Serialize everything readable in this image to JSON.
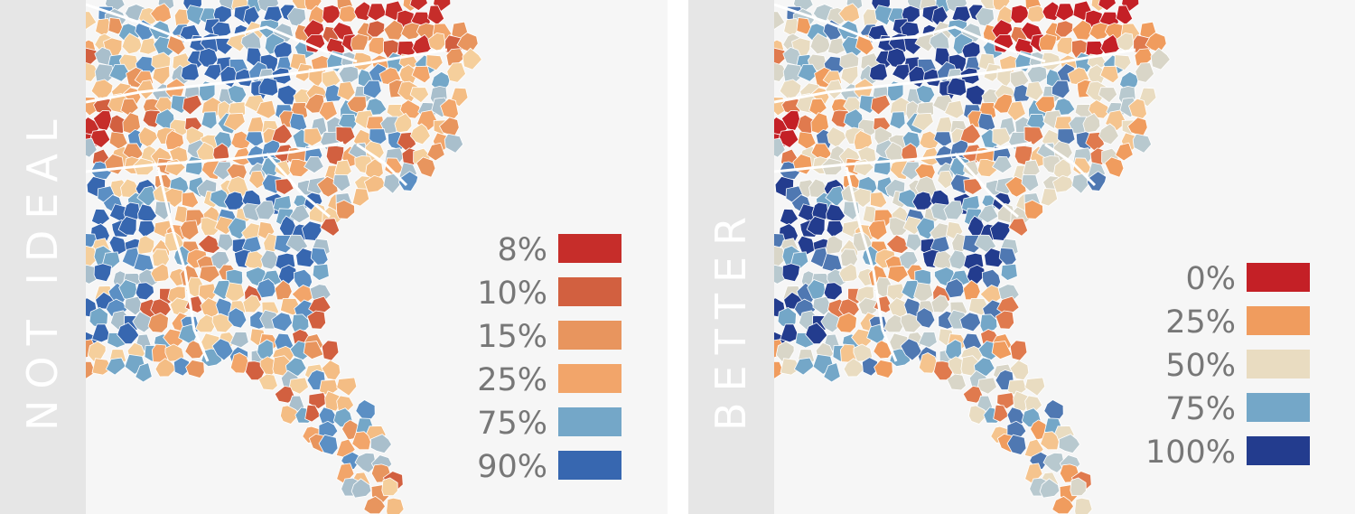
{
  "panels": [
    {
      "label": "NOT IDEAL",
      "legend": [
        {
          "label": "8%",
          "color": "#c62d2a"
        },
        {
          "label": "10%",
          "color": "#d26040"
        },
        {
          "label": "15%",
          "color": "#e8955e"
        },
        {
          "label": "25%",
          "color": "#f2a56a"
        },
        {
          "label": "75%",
          "color": "#74a7c8"
        },
        {
          "label": "90%",
          "color": "#3767b0"
        }
      ]
    },
    {
      "label": "BETTER",
      "legend": [
        {
          "label": "0%",
          "color": "#c42026"
        },
        {
          "label": "25%",
          "color": "#f09c5e"
        },
        {
          "label": "50%",
          "color": "#e9dcc1"
        },
        {
          "label": "75%",
          "color": "#74a7c8"
        },
        {
          "label": "100%",
          "color": "#233c8e"
        }
      ]
    }
  ]
}
